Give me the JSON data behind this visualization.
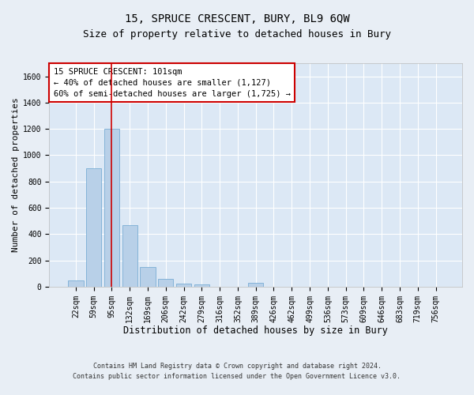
{
  "title": "15, SPRUCE CRESCENT, BURY, BL9 6QW",
  "subtitle": "Size of property relative to detached houses in Bury",
  "xlabel": "Distribution of detached houses by size in Bury",
  "ylabel": "Number of detached properties",
  "footer_line1": "Contains HM Land Registry data © Crown copyright and database right 2024.",
  "footer_line2": "Contains public sector information licensed under the Open Government Licence v3.0.",
  "categories": [
    "22sqm",
    "59sqm",
    "95sqm",
    "132sqm",
    "169sqm",
    "206sqm",
    "242sqm",
    "279sqm",
    "316sqm",
    "352sqm",
    "389sqm",
    "426sqm",
    "462sqm",
    "499sqm",
    "536sqm",
    "573sqm",
    "609sqm",
    "646sqm",
    "683sqm",
    "719sqm",
    "756sqm"
  ],
  "values": [
    50,
    900,
    1200,
    470,
    150,
    60,
    25,
    15,
    0,
    0,
    30,
    0,
    0,
    0,
    0,
    0,
    0,
    0,
    0,
    0,
    0
  ],
  "bar_color": "#b8d0e8",
  "bar_edge_color": "#7aadd4",
  "vline_x": 2,
  "vline_color": "#cc0000",
  "annotation_text": "15 SPRUCE CRESCENT: 101sqm\n← 40% of detached houses are smaller (1,127)\n60% of semi-detached houses are larger (1,725) →",
  "annotation_box_color": "#ffffff",
  "annotation_box_edge_color": "#cc0000",
  "ylim": [
    0,
    1700
  ],
  "yticks": [
    0,
    200,
    400,
    600,
    800,
    1000,
    1200,
    1400,
    1600
  ],
  "bg_color": "#e8eef5",
  "plot_bg_color": "#dce8f5",
  "grid_color": "#ffffff",
  "title_fontsize": 10,
  "subtitle_fontsize": 9,
  "xlabel_fontsize": 8.5,
  "ylabel_fontsize": 8,
  "tick_fontsize": 7,
  "annotation_fontsize": 7.5,
  "footer_fontsize": 6
}
